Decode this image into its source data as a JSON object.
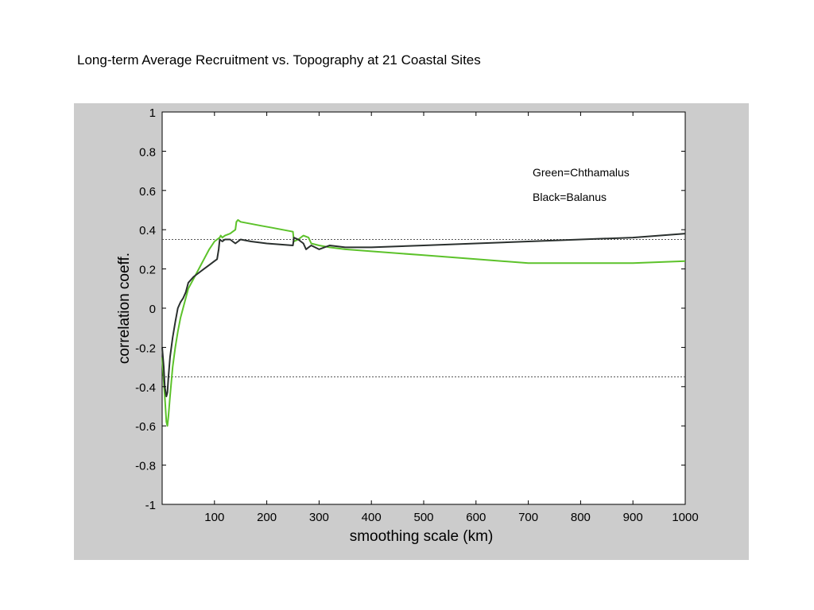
{
  "page": {
    "title": "Long-term Average Recruitment vs. Topography at 21 Coastal Sites"
  },
  "chart_data": {
    "type": "line",
    "xlabel": "smoothing scale (km)",
    "ylabel": "correlation coeff.",
    "xlim": [
      0,
      1000
    ],
    "ylim": [
      -1,
      1
    ],
    "xticks": [
      100,
      200,
      300,
      400,
      500,
      600,
      700,
      800,
      900,
      1000
    ],
    "yticks": [
      1,
      0.8,
      0.6,
      0.4,
      0.2,
      0,
      -0.2,
      -0.4,
      -0.6,
      -0.8,
      -1
    ],
    "annotations": [
      "Green=Chthamalus",
      "Black=Balanus"
    ],
    "reference_lines": [
      0.35,
      -0.35
    ],
    "grid": false,
    "colors": {
      "figure_bg": "#cccccc",
      "axes_bg": "#ffffff",
      "green": "#5cc22a",
      "black": "#2a302e",
      "ref": "#555555"
    },
    "series": [
      {
        "color": "#5cc22a",
        "x": [
          0,
          5,
          8,
          10,
          12,
          15,
          20,
          25,
          30,
          35,
          40,
          45,
          50,
          60,
          70,
          80,
          90,
          95,
          100,
          105,
          110,
          112,
          115,
          120,
          130,
          140,
          142,
          145,
          150,
          170,
          190,
          210,
          230,
          250,
          252,
          260,
          270,
          280,
          285,
          300,
          320,
          350,
          400,
          500,
          600,
          700,
          800,
          900,
          1000
        ],
        "y": [
          -0.25,
          -0.45,
          -0.58,
          -0.6,
          -0.55,
          -0.45,
          -0.3,
          -0.2,
          -0.12,
          -0.05,
          0.0,
          0.05,
          0.1,
          0.15,
          0.2,
          0.25,
          0.3,
          0.32,
          0.34,
          0.35,
          0.36,
          0.37,
          0.36,
          0.37,
          0.38,
          0.4,
          0.44,
          0.45,
          0.44,
          0.43,
          0.42,
          0.41,
          0.4,
          0.39,
          0.34,
          0.35,
          0.37,
          0.36,
          0.33,
          0.32,
          0.31,
          0.3,
          0.29,
          0.27,
          0.25,
          0.23,
          0.23,
          0.23,
          0.24
        ]
      },
      {
        "color": "#2a302e",
        "x": [
          0,
          3,
          5,
          8,
          10,
          12,
          15,
          20,
          25,
          30,
          35,
          40,
          45,
          50,
          60,
          70,
          80,
          90,
          100,
          105,
          108,
          110,
          115,
          120,
          130,
          140,
          150,
          170,
          200,
          250,
          252,
          260,
          270,
          275,
          280,
          285,
          300,
          320,
          350,
          400,
          500,
          600,
          700,
          800,
          900,
          1000
        ],
        "y": [
          -0.2,
          -0.3,
          -0.4,
          -0.45,
          -0.43,
          -0.35,
          -0.25,
          -0.15,
          -0.07,
          0.0,
          0.03,
          0.05,
          0.08,
          0.13,
          0.16,
          0.18,
          0.2,
          0.22,
          0.24,
          0.25,
          0.3,
          0.35,
          0.34,
          0.35,
          0.35,
          0.33,
          0.35,
          0.34,
          0.33,
          0.32,
          0.36,
          0.35,
          0.33,
          0.3,
          0.31,
          0.32,
          0.3,
          0.32,
          0.31,
          0.31,
          0.32,
          0.33,
          0.34,
          0.35,
          0.36,
          0.38
        ]
      }
    ]
  }
}
